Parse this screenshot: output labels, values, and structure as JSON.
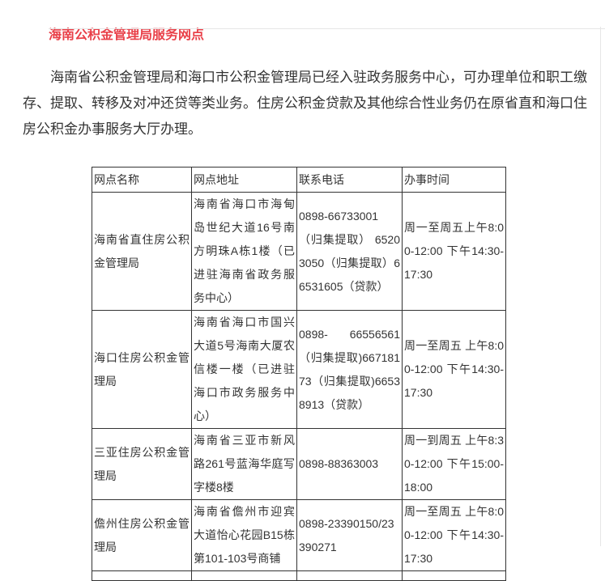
{
  "page": {
    "title": "海南公积金管理局服务网点",
    "accent_color": "#e94049",
    "intro": "海南省公积金管理局和海口市公积金管理局已经入驻政务服务中心，可办理单位和职工缴存、提取、转移及对冲还贷等类业务。住房公积金贷款及其他综合性业务仍在原省直和海口住房公积金办事服务大厅办理。"
  },
  "table": {
    "headers": [
      "网点名称",
      "网点地址",
      "联系电话",
      "办事时间"
    ],
    "rows": [
      {
        "name": "海南省直住房公积金管理局",
        "address": "海南省海口市海甸岛世纪大道16号南方明珠A栋1楼（已进驻海南省政务服务中心）",
        "phone": "0898-66733001（归集提取） 65203050（归集提取）66531605（贷款）",
        "hours": "周一至周五上午8:00-12:00 下午14:30-17:30"
      },
      {
        "name": "海口住房公积金管理局",
        "address": "海南省海口市国兴大道5号海南大厦农信楼一楼（已进驻海口市政务服务中心）",
        "phone": "0898- 66556561 （归集提取)66718173（归集提取)66538913（贷款）",
        "hours": "周一至周五 上午8:00-12:00 下午14:30-17:30"
      },
      {
        "name": "三亚住房公积金管理局",
        "address": "海南省三亚市新风路261号蓝海华庭写字楼8楼",
        "phone": "0898-88363003",
        "hours": "周一到周五 上午8:30-12:00 下午15:00-18:00"
      },
      {
        "name": "儋州住房公积金管理局",
        "address": "海南省儋州市迎宾大道怡心花园B15栋第101-103号商铺",
        "phone": "0898-23390150/23390271",
        "hours": "周一至周五 上午8:00-12:00 下午14:30-17:30"
      }
    ]
  }
}
